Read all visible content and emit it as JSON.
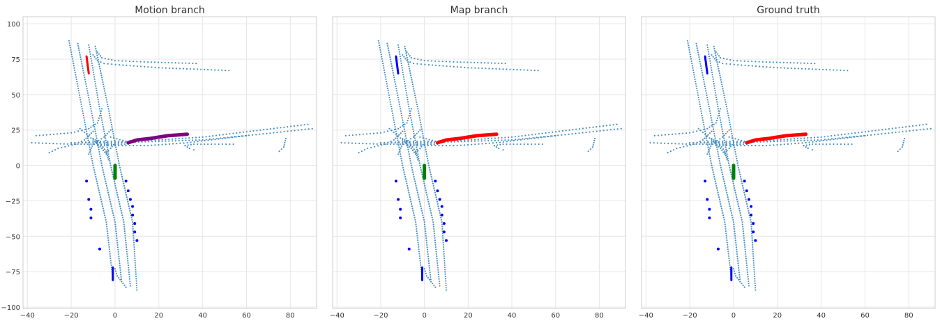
{
  "chart_data": [
    {
      "type": "scatter",
      "title": "Motion branch",
      "xlim": [
        -42,
        92
      ],
      "ylim": [
        -101,
        105
      ],
      "xticks": [
        -40,
        -20,
        0,
        20,
        40,
        60,
        80
      ],
      "yticks": [
        100,
        75,
        50,
        25,
        0,
        -25,
        -50,
        -75,
        -100
      ],
      "show_yticks": true,
      "grid": true,
      "highlights": {
        "top_vehicle": "#ff0000",
        "target_lane": "#800080"
      }
    },
    {
      "type": "scatter",
      "title": "Map branch",
      "xlim": [
        -42,
        92
      ],
      "ylim": [
        -101,
        105
      ],
      "xticks": [
        -40,
        -20,
        0,
        20,
        40,
        60,
        80
      ],
      "yticks": [],
      "show_yticks": false,
      "grid": true,
      "highlights": {
        "top_vehicle": "#0000ff",
        "target_lane": "#ff0000"
      }
    },
    {
      "type": "scatter",
      "title": "Ground truth",
      "xlim": [
        -42,
        92
      ],
      "ylim": [
        -101,
        105
      ],
      "xticks": [
        -40,
        -20,
        0,
        20,
        40,
        60,
        80
      ],
      "yticks": [],
      "show_yticks": false,
      "grid": true,
      "highlights": {
        "top_vehicle": "#0000ff",
        "target_lane": "#ff0000"
      }
    }
  ],
  "scene": {
    "lane_color": "#4a90c4",
    "ego_color": "#008000",
    "agent_color": "#0000ff",
    "lanes": [
      [
        [
          -21,
          88
        ],
        [
          -15,
          40
        ],
        [
          -10,
          0
        ],
        [
          -4,
          -40
        ],
        [
          -1,
          -80
        ]
      ],
      [
        [
          -17,
          86
        ],
        [
          -11,
          40
        ],
        [
          -6,
          0
        ],
        [
          0,
          -40
        ],
        [
          3,
          -82
        ]
      ],
      [
        [
          -12,
          85
        ],
        [
          -7,
          40
        ],
        [
          -2,
          0
        ],
        [
          4,
          -40
        ],
        [
          7,
          -85
        ]
      ],
      [
        [
          -9,
          84
        ],
        [
          -3,
          40
        ],
        [
          2,
          0
        ],
        [
          8,
          -40
        ],
        [
          10,
          -88
        ]
      ],
      [
        [
          -36,
          21
        ],
        [
          -20,
          23
        ],
        [
          -12,
          26
        ],
        [
          -8,
          30
        ],
        [
          -6,
          40
        ]
      ],
      [
        [
          -38,
          16
        ],
        [
          -20,
          15
        ],
        [
          -8,
          15
        ],
        [
          0,
          15
        ],
        [
          6,
          15
        ]
      ],
      [
        [
          -20,
          16
        ],
        [
          -5,
          17
        ],
        [
          5,
          17
        ],
        [
          20,
          18
        ],
        [
          40,
          20
        ],
        [
          88,
          29
        ]
      ],
      [
        [
          -15,
          16
        ],
        [
          0,
          16
        ],
        [
          20,
          17
        ],
        [
          40,
          18
        ],
        [
          66,
          22
        ],
        [
          90,
          26
        ]
      ],
      [
        [
          -8,
          14
        ],
        [
          0,
          14
        ],
        [
          15,
          14
        ],
        [
          33,
          16
        ],
        [
          60,
          21
        ]
      ],
      [
        [
          -2,
          20
        ],
        [
          5,
          17
        ],
        [
          10,
          18
        ],
        [
          20,
          20
        ],
        [
          33,
          22
        ]
      ],
      [
        [
          -10,
          78
        ],
        [
          -8,
          74
        ],
        [
          -5,
          72
        ],
        [
          2,
          71
        ],
        [
          20,
          69
        ],
        [
          52,
          67
        ]
      ],
      [
        [
          -8,
          80
        ],
        [
          -6,
          76
        ],
        [
          0,
          74
        ],
        [
          15,
          73
        ],
        [
          37,
          72
        ]
      ],
      [
        [
          -4,
          9
        ],
        [
          -2,
          12
        ],
        [
          0,
          16
        ]
      ],
      [
        [
          -30,
          9
        ],
        [
          -26,
          12
        ],
        [
          -18,
          15
        ],
        [
          -14,
          18
        ],
        [
          -10,
          24
        ]
      ],
      [
        [
          -16,
          26
        ],
        [
          -10,
          18
        ],
        [
          -6,
          12
        ],
        [
          -4,
          8
        ]
      ],
      [
        [
          -2,
          25
        ],
        [
          -5,
          20
        ],
        [
          -10,
          15
        ],
        [
          -12,
          8
        ]
      ],
      [
        [
          -10,
          19
        ],
        [
          -7,
          16
        ],
        [
          -4,
          10
        ],
        [
          -3,
          4
        ]
      ],
      [
        [
          32,
          14
        ],
        [
          36,
          15
        ],
        [
          44,
          15
        ],
        [
          54,
          15
        ]
      ],
      [
        [
          32,
          14
        ],
        [
          34,
          12
        ],
        [
          36,
          11
        ]
      ],
      [
        [
          75,
          10
        ],
        [
          77,
          13
        ],
        [
          78,
          19
        ]
      ],
      [
        [
          0,
          -73
        ],
        [
          1,
          -78
        ],
        [
          3,
          -82
        ],
        [
          5,
          -86
        ]
      ]
    ],
    "agents_left": [
      [
        -13,
        -11
      ],
      [
        -12,
        -24
      ],
      [
        -11,
        -31
      ],
      [
        -11,
        -37
      ]
    ],
    "agents_right": [
      [
        5,
        -11
      ],
      [
        6,
        -18
      ],
      [
        7,
        -24
      ],
      [
        8,
        -29
      ],
      [
        8,
        -35
      ],
      [
        9,
        -41
      ],
      [
        9,
        -47
      ],
      [
        10,
        -53
      ]
    ],
    "agent_lone": [
      [
        -7,
        -59
      ]
    ],
    "ego": [
      [
        0,
        0
      ],
      [
        0,
        -9
      ]
    ],
    "top_vehicle": [
      [
        -13,
        77
      ],
      [
        -12,
        65
      ]
    ],
    "bottom_vehicle": [
      [
        -1,
        -72
      ],
      [
        -1,
        -81
      ]
    ],
    "target_lane": [
      [
        6,
        16
      ],
      [
        10,
        18
      ],
      [
        16,
        19
      ],
      [
        24,
        21
      ],
      [
        33,
        22
      ]
    ]
  }
}
